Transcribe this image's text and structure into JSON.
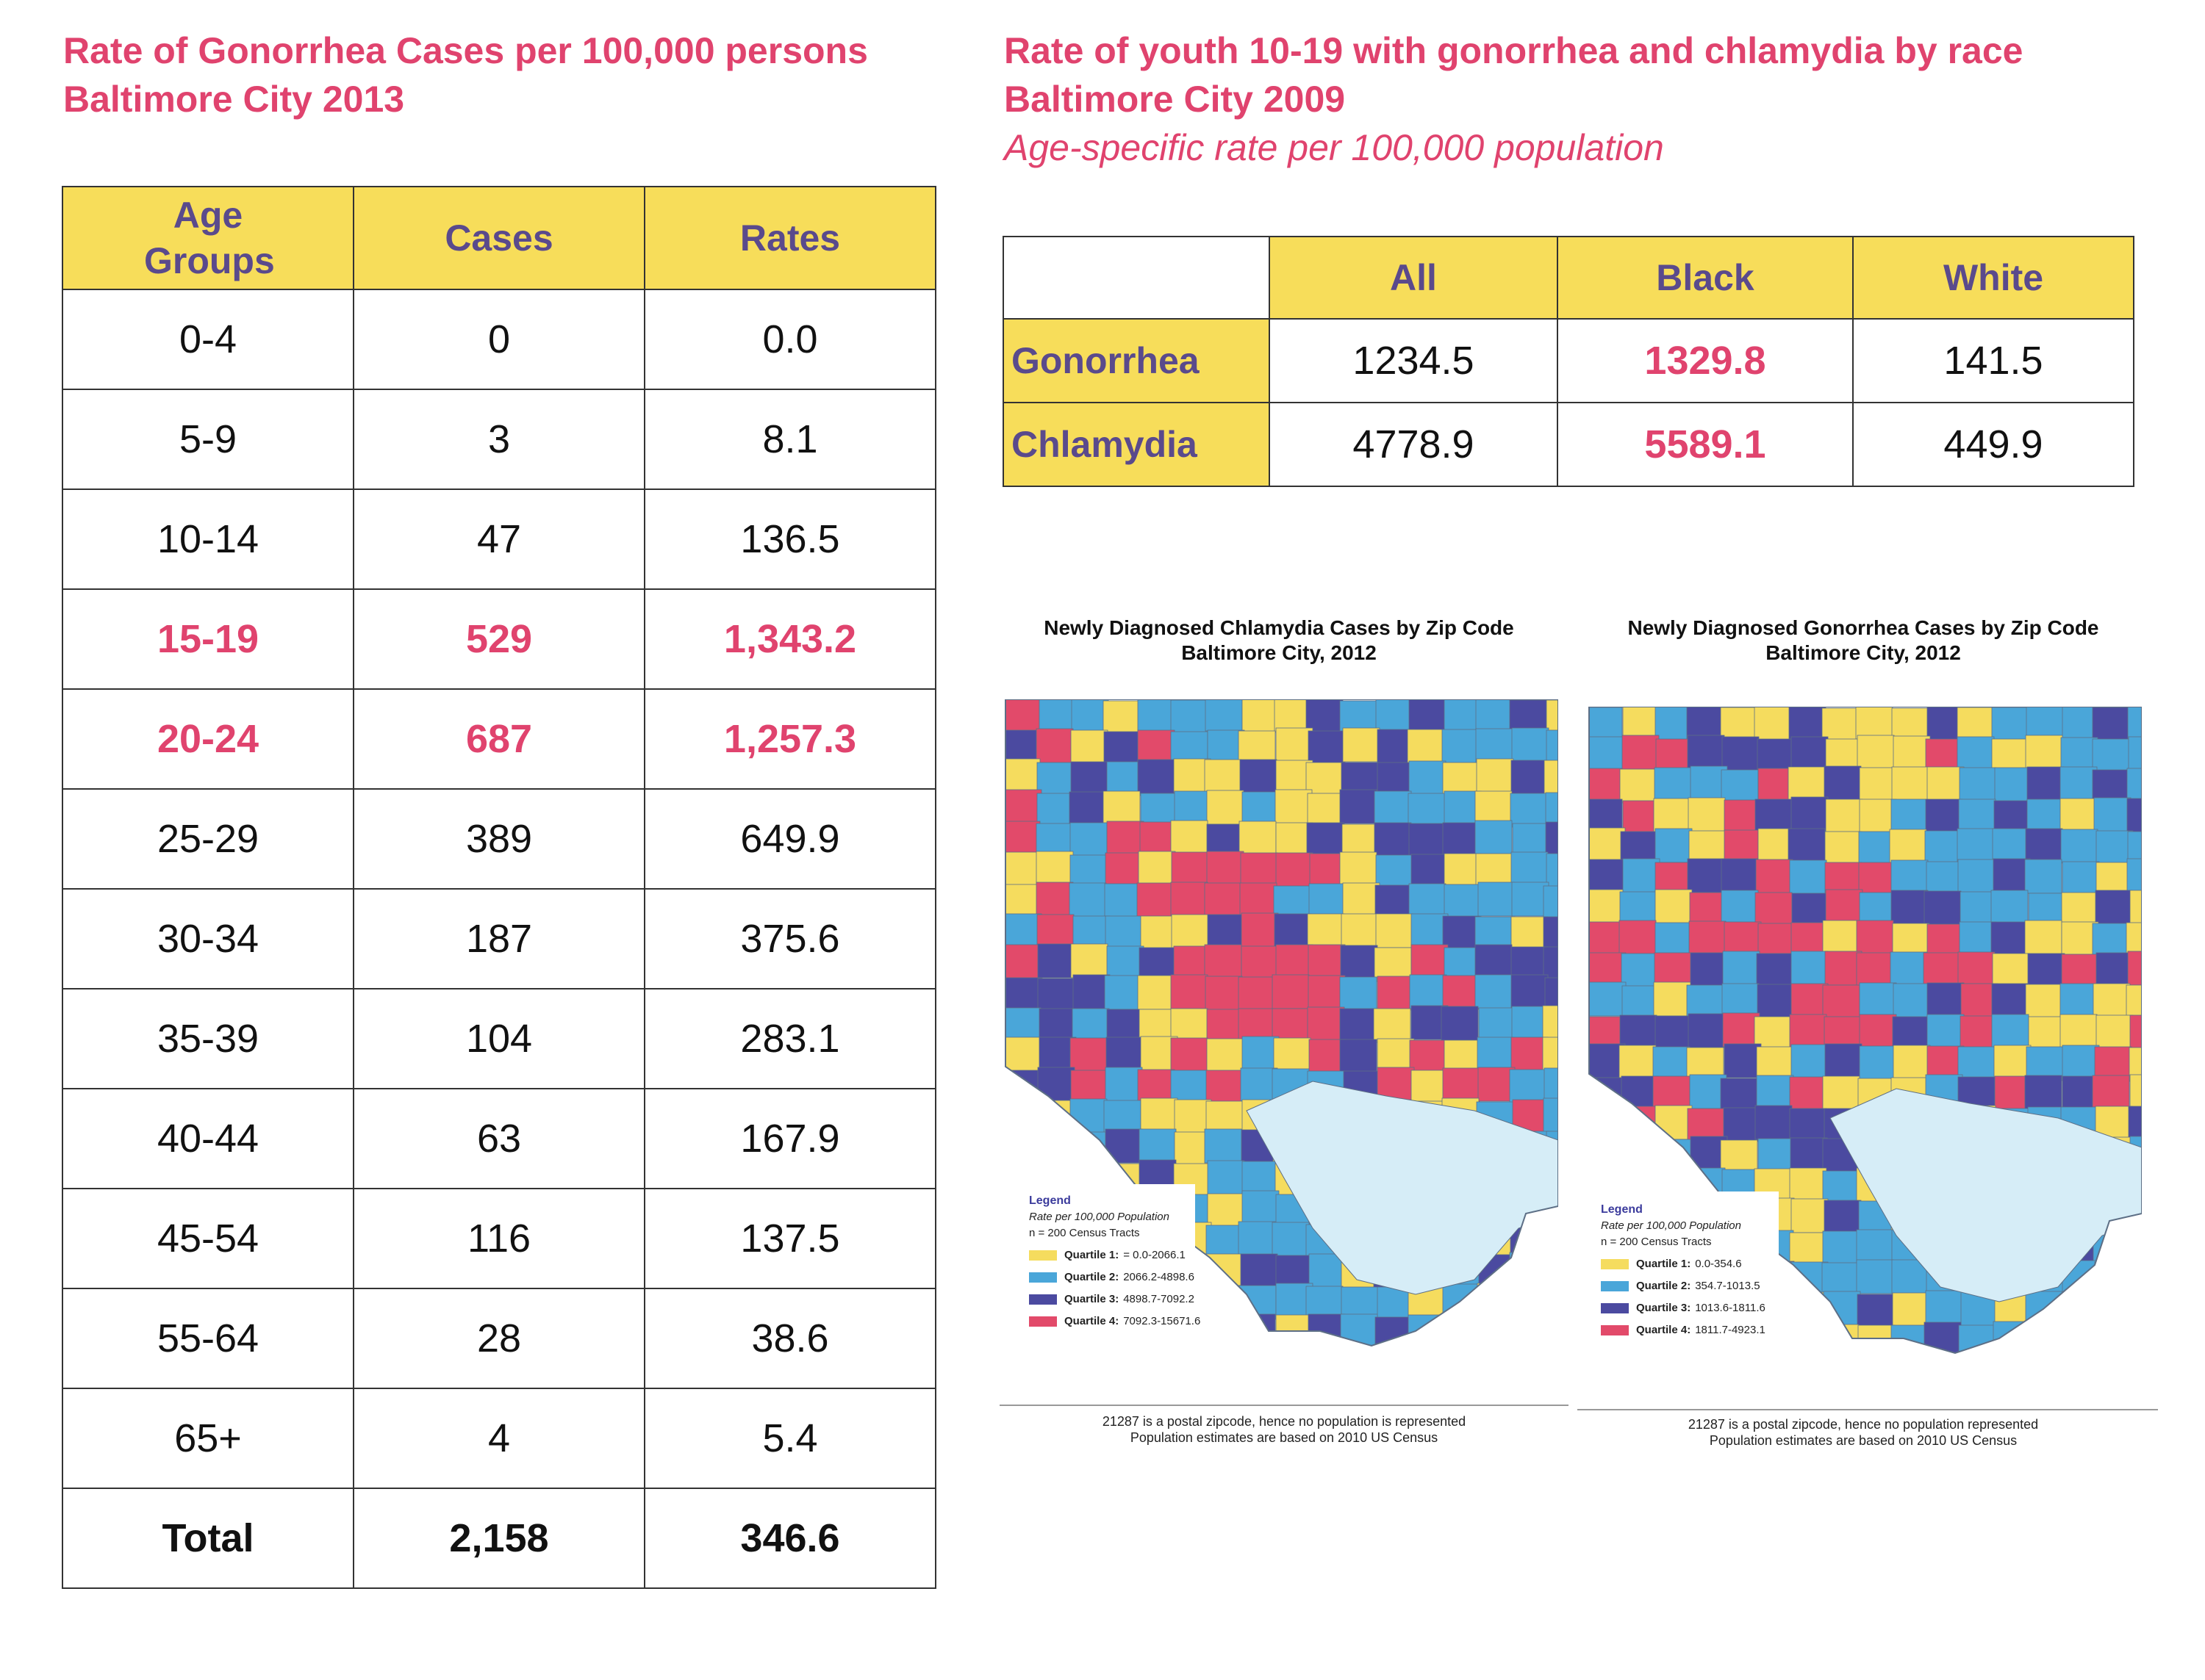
{
  "left_heading": {
    "line1": "Rate of Gonorrhea Cases per 100,000 persons",
    "line2": "Baltimore City 2013"
  },
  "gonorrhea_table": {
    "headers": [
      "Age Groups",
      "Cases",
      "Rates"
    ],
    "rows": [
      {
        "age": "0-4",
        "cases": "0",
        "rate": "0.0",
        "highlight": false
      },
      {
        "age": "5-9",
        "cases": "3",
        "rate": "8.1",
        "highlight": false
      },
      {
        "age": "10-14",
        "cases": "47",
        "rate": "136.5",
        "highlight": false
      },
      {
        "age": "15-19",
        "cases": "529",
        "rate": "1,343.2",
        "highlight": true
      },
      {
        "age": "20-24",
        "cases": "687",
        "rate": "1,257.3",
        "highlight": true
      },
      {
        "age": "25-29",
        "cases": "389",
        "rate": "649.9",
        "highlight": false
      },
      {
        "age": "30-34",
        "cases": "187",
        "rate": "375.6",
        "highlight": false
      },
      {
        "age": "35-39",
        "cases": "104",
        "rate": "283.1",
        "highlight": false
      },
      {
        "age": "40-44",
        "cases": "63",
        "rate": "167.9",
        "highlight": false
      },
      {
        "age": "45-54",
        "cases": "116",
        "rate": "137.5",
        "highlight": false
      },
      {
        "age": "55-64",
        "cases": "28",
        "rate": "38.6",
        "highlight": false
      },
      {
        "age": "65+",
        "cases": "4",
        "rate": "5.4",
        "highlight": false
      }
    ],
    "total": {
      "label": "Total",
      "cases": "2,158",
      "rate": "346.6"
    }
  },
  "right_heading": {
    "line1": "Rate of youth 10-19 with gonorrhea and chlamydia by race",
    "line2": "Baltimore City 2009",
    "line3": "Age-specific rate per 100,000 population"
  },
  "race_table": {
    "headers": [
      "All",
      "Black",
      "White"
    ],
    "rows": [
      {
        "label": "Gonorrhea",
        "all": "1234.5",
        "black": "1329.8",
        "white": "141.5"
      },
      {
        "label": "Chlamydia",
        "all": "4778.9",
        "black": "5589.1",
        "white": "449.9"
      }
    ]
  },
  "colors": {
    "accent_pink": "#e0436e",
    "header_yellow": "#f7dd5a",
    "header_text": "#5a4a8c",
    "q1": "#f5dc5e",
    "q2": "#4aa6d9",
    "q3": "#4b4aa0",
    "q4": "#e24a6a",
    "water": "#d6edf7"
  },
  "maps": [
    {
      "title_line1": "Newly Diagnosed Chlamydia Cases by Zip Code",
      "title_line2": "Baltimore City, 2012",
      "legend_title": "Legend",
      "legend_sub1": "Rate per 100,000 Population",
      "legend_sub2": "n = 200 Census Tracts",
      "quartiles": [
        {
          "label": "Quartile 1:",
          "range": "= 0.0-2066.1"
        },
        {
          "label": "Quartile 2:",
          "range": "2066.2-4898.6"
        },
        {
          "label": "Quartile 3:",
          "range": "4898.7-7092.2"
        },
        {
          "label": "Quartile 4:",
          "range": "7092.3-15671.6"
        }
      ],
      "footnote1": "21287 is a postal zipcode, hence no population is represented",
      "footnote2": "Population estimates are based on 2010 US Census"
    },
    {
      "title_line1": "Newly Diagnosed Gonorrhea Cases by Zip Code",
      "title_line2": "Baltimore City, 2012",
      "legend_title": "Legend",
      "legend_sub1": "Rate per 100,000 Population",
      "legend_sub2": "n = 200 Census Tracts",
      "quartiles": [
        {
          "label": "Quartile 1:",
          "range": "0.0-354.6"
        },
        {
          "label": "Quartile 2:",
          "range": "354.7-1013.5"
        },
        {
          "label": "Quartile 3:",
          "range": "1013.6-1811.6"
        },
        {
          "label": "Quartile 4:",
          "range": "1811.7-4923.1"
        }
      ],
      "footnote1": "21287 is a postal zipcode, hence no population represented",
      "footnote2": "Population estimates are based on 2010 US Census"
    }
  ]
}
